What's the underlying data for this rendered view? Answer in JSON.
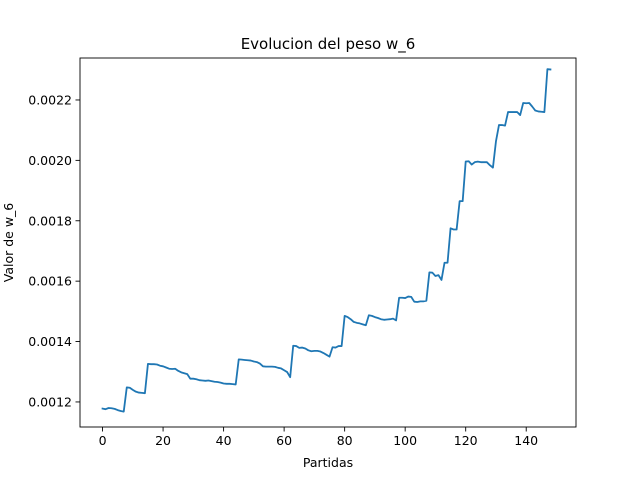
{
  "chart_data": {
    "type": "line",
    "title": "Evolucion del peso w_6",
    "xlabel": "Partidas",
    "ylabel": "Valor de w_6",
    "xlim": [
      -7.45,
      156.45
    ],
    "ylim": [
      0.001117,
      0.002339
    ],
    "xticks": [
      0,
      20,
      40,
      60,
      80,
      100,
      120,
      140
    ],
    "xtick_labels": [
      "0",
      "20",
      "40",
      "60",
      "80",
      "100",
      "120",
      "140"
    ],
    "yticks": [
      0.0012,
      0.0014,
      0.0016,
      0.0018,
      0.002,
      0.0022
    ],
    "ytick_labels": [
      "0.0012",
      "0.0014",
      "0.0016",
      "0.0018",
      "0.0020",
      "0.0022"
    ],
    "grid": false,
    "color": "#1f77b4",
    "series": [
      {
        "points": [
          [
            0,
            0.001178
          ],
          [
            1,
            0.001176
          ],
          [
            2,
            0.00118
          ],
          [
            3,
            0.001179
          ],
          [
            4,
            0.001177
          ],
          [
            5,
            0.001173
          ],
          [
            6,
            0.00117
          ],
          [
            7,
            0.001168
          ],
          [
            8,
            0.001248
          ],
          [
            9,
            0.001247
          ],
          [
            10,
            0.00124
          ],
          [
            11,
            0.001234
          ],
          [
            12,
            0.001231
          ],
          [
            13,
            0.00123
          ],
          [
            14,
            0.001229
          ],
          [
            15,
            0.001326
          ],
          [
            16,
            0.001325
          ],
          [
            17,
            0.001325
          ],
          [
            18,
            0.001324
          ],
          [
            19,
            0.00132
          ],
          [
            20,
            0.001318
          ],
          [
            21,
            0.001314
          ],
          [
            22,
            0.00131
          ],
          [
            23,
            0.001309
          ],
          [
            24,
            0.00131
          ],
          [
            25,
            0.001303
          ],
          [
            26,
            0.001298
          ],
          [
            27,
            0.001295
          ],
          [
            28,
            0.001292
          ],
          [
            29,
            0.001277
          ],
          [
            30,
            0.001277
          ],
          [
            31,
            0.001275
          ],
          [
            32,
            0.001272
          ],
          [
            33,
            0.001271
          ],
          [
            34,
            0.00127
          ],
          [
            35,
            0.001271
          ],
          [
            36,
            0.001269
          ],
          [
            37,
            0.001267
          ],
          [
            38,
            0.001266
          ],
          [
            39,
            0.001264
          ],
          [
            40,
            0.001261
          ],
          [
            41,
            0.00126
          ],
          [
            42,
            0.00126
          ],
          [
            43,
            0.001259
          ],
          [
            44,
            0.001258
          ],
          [
            45,
            0.001341
          ],
          [
            46,
            0.00134
          ],
          [
            47,
            0.001339
          ],
          [
            48,
            0.001338
          ],
          [
            49,
            0.001337
          ],
          [
            50,
            0.001334
          ],
          [
            51,
            0.001332
          ],
          [
            52,
            0.001327
          ],
          [
            53,
            0.001318
          ],
          [
            54,
            0.001317
          ],
          [
            55,
            0.001317
          ],
          [
            56,
            0.001317
          ],
          [
            57,
            0.001316
          ],
          [
            58,
            0.001313
          ],
          [
            59,
            0.001311
          ],
          [
            60,
            0.001305
          ],
          [
            61,
            0.001299
          ],
          [
            62,
            0.001282
          ],
          [
            63,
            0.001386
          ],
          [
            64,
            0.001385
          ],
          [
            65,
            0.001379
          ],
          [
            66,
            0.00138
          ],
          [
            67,
            0.001377
          ],
          [
            68,
            0.001371
          ],
          [
            69,
            0.001368
          ],
          [
            70,
            0.001369
          ],
          [
            71,
            0.001369
          ],
          [
            72,
            0.001367
          ],
          [
            73,
            0.001362
          ],
          [
            74,
            0.001356
          ],
          [
            75,
            0.00135
          ],
          [
            76,
            0.001381
          ],
          [
            77,
            0.00138
          ],
          [
            78,
            0.001385
          ],
          [
            79,
            0.001385
          ],
          [
            80,
            0.001485
          ],
          [
            81,
            0.001481
          ],
          [
            82,
            0.001474
          ],
          [
            83,
            0.001465
          ],
          [
            84,
            0.001462
          ],
          [
            85,
            0.00146
          ],
          [
            86,
            0.001457
          ],
          [
            87,
            0.001454
          ],
          [
            88,
            0.001487
          ],
          [
            89,
            0.001485
          ],
          [
            90,
            0.001481
          ],
          [
            91,
            0.001478
          ],
          [
            92,
            0.001474
          ],
          [
            93,
            0.001472
          ],
          [
            94,
            0.001473
          ],
          [
            95,
            0.001474
          ],
          [
            96,
            0.001476
          ],
          [
            97,
            0.00147
          ],
          [
            98,
            0.001545
          ],
          [
            99,
            0.001545
          ],
          [
            100,
            0.001544
          ],
          [
            101,
            0.001549
          ],
          [
            102,
            0.001548
          ],
          [
            103,
            0.001532
          ],
          [
            104,
            0.001531
          ],
          [
            105,
            0.001533
          ],
          [
            106,
            0.001533
          ],
          [
            107,
            0.001535
          ],
          [
            108,
            0.001629
          ],
          [
            109,
            0.001628
          ],
          [
            110,
            0.001617
          ],
          [
            111,
            0.00162
          ],
          [
            112,
            0.001604
          ],
          [
            113,
            0.001661
          ],
          [
            114,
            0.001661
          ],
          [
            115,
            0.001775
          ],
          [
            116,
            0.001771
          ],
          [
            117,
            0.001771
          ],
          [
            118,
            0.001865
          ],
          [
            119,
            0.001865
          ],
          [
            120,
            0.001996
          ],
          [
            121,
            0.001997
          ],
          [
            122,
            0.001986
          ],
          [
            123,
            0.001994
          ],
          [
            124,
            0.001996
          ],
          [
            125,
            0.001994
          ],
          [
            126,
            0.001994
          ],
          [
            127,
            0.001994
          ],
          [
            128,
            0.001984
          ],
          [
            129,
            0.001976
          ],
          [
            130,
            0.002063
          ],
          [
            131,
            0.002117
          ],
          [
            132,
            0.002117
          ],
          [
            133,
            0.002115
          ],
          [
            134,
            0.00216
          ],
          [
            135,
            0.00216
          ],
          [
            136,
            0.00216
          ],
          [
            137,
            0.00216
          ],
          [
            138,
            0.00215
          ],
          [
            139,
            0.00219
          ],
          [
            140,
            0.002189
          ],
          [
            141,
            0.00219
          ],
          [
            142,
            0.002178
          ],
          [
            143,
            0.002165
          ],
          [
            144,
            0.002162
          ],
          [
            145,
            0.002161
          ],
          [
            146,
            0.00216
          ],
          [
            147,
            0.002302
          ],
          [
            148,
            0.002301
          ]
        ]
      }
    ]
  }
}
